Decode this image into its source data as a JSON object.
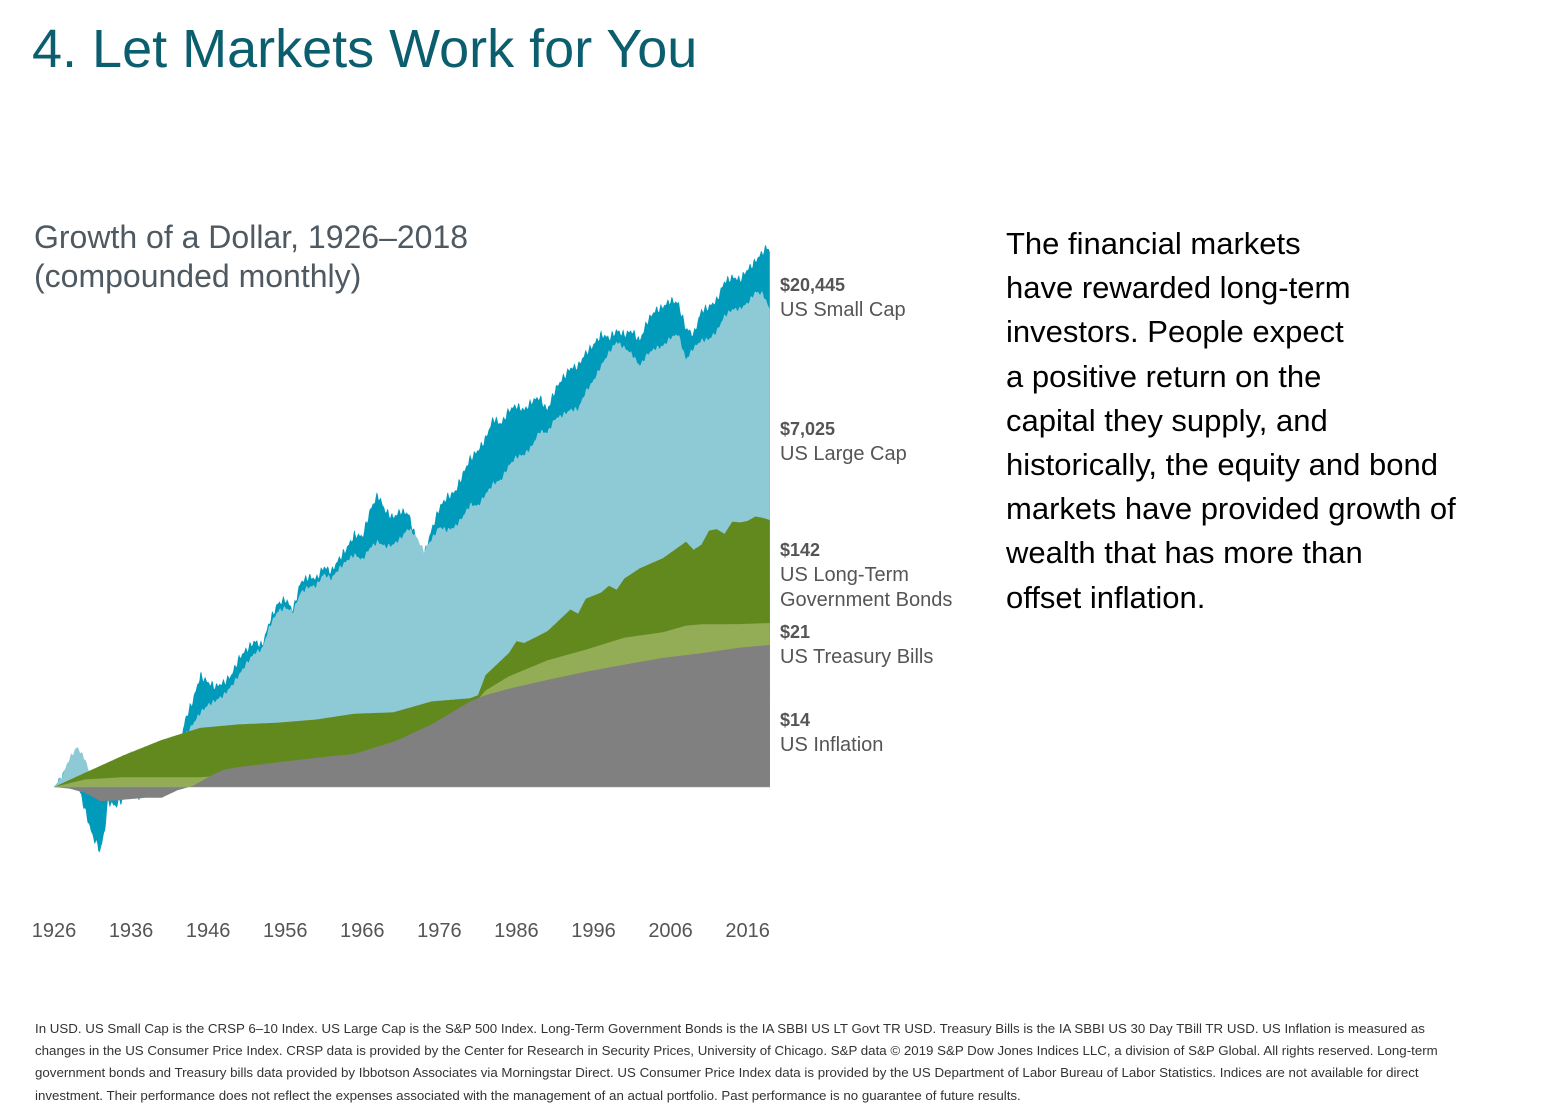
{
  "slide": {
    "title": "4. Let Markets Work for You"
  },
  "chart_data": {
    "type": "area",
    "title_line1": "Growth of a Dollar, 1926–2018",
    "title_line2": "(compounded monthly)",
    "xlabel": "",
    "ylabel": "",
    "y_scale": "log",
    "grid": false,
    "x_ticks": [
      "1926",
      "1936",
      "1946",
      "1956",
      "1966",
      "1976",
      "1986",
      "1996",
      "2006",
      "2016"
    ],
    "x_range": [
      1926,
      2018.9
    ],
    "y_range": [
      0.35,
      60000
    ],
    "series": [
      {
        "name": "US Small Cap",
        "end_value": "$20,445",
        "color": "#009bbb",
        "points": [
          [
            1926,
            1
          ],
          [
            1927,
            1.2
          ],
          [
            1928,
            1.5
          ],
          [
            1929,
            1.1
          ],
          [
            1930,
            0.65
          ],
          [
            1931,
            0.4
          ],
          [
            1932,
            0.3
          ],
          [
            1932.6,
            0.45
          ],
          [
            1933,
            0.75
          ],
          [
            1934,
            0.7
          ],
          [
            1935,
            0.8
          ],
          [
            1936,
            1.0
          ],
          [
            1937,
            0.8
          ],
          [
            1938,
            0.95
          ],
          [
            1939,
            1.05
          ],
          [
            1940,
            1.1
          ],
          [
            1941,
            1.3
          ],
          [
            1942,
            1.6
          ],
          [
            1943,
            3.5
          ],
          [
            1944,
            5
          ],
          [
            1945,
            8
          ],
          [
            1946,
            7
          ],
          [
            1947,
            6.5
          ],
          [
            1948,
            7
          ],
          [
            1949,
            8
          ],
          [
            1950,
            11
          ],
          [
            1951,
            13
          ],
          [
            1952,
            15
          ],
          [
            1953,
            14
          ],
          [
            1954,
            22
          ],
          [
            1955,
            30
          ],
          [
            1956,
            33
          ],
          [
            1957,
            27
          ],
          [
            1958,
            45
          ],
          [
            1959,
            50
          ],
          [
            1960,
            48
          ],
          [
            1961,
            60
          ],
          [
            1962,
            55
          ],
          [
            1963,
            70
          ],
          [
            1964,
            85
          ],
          [
            1965,
            110
          ],
          [
            1966,
            105
          ],
          [
            1967,
            170
          ],
          [
            1968,
            230
          ],
          [
            1969,
            170
          ],
          [
            1970,
            150
          ],
          [
            1971,
            170
          ],
          [
            1972,
            160
          ],
          [
            1973,
            100
          ],
          [
            1974,
            75
          ],
          [
            1975,
            120
          ],
          [
            1976,
            180
          ],
          [
            1977,
            220
          ],
          [
            1978,
            240
          ],
          [
            1979,
            330
          ],
          [
            1980,
            450
          ],
          [
            1981,
            520
          ],
          [
            1982,
            650
          ],
          [
            1983,
            950
          ],
          [
            1984,
            850
          ],
          [
            1985,
            1100
          ],
          [
            1986,
            1200
          ],
          [
            1987,
            1100
          ],
          [
            1988,
            1300
          ],
          [
            1989,
            1400
          ],
          [
            1990,
            1100
          ],
          [
            1991,
            1600
          ],
          [
            1992,
            2000
          ],
          [
            1993,
            2400
          ],
          [
            1994,
            2500
          ],
          [
            1995,
            3200
          ],
          [
            1996,
            3700
          ],
          [
            1997,
            4500
          ],
          [
            1998,
            4200
          ],
          [
            1999,
            4800
          ],
          [
            2000,
            4500
          ],
          [
            2001,
            4800
          ],
          [
            2002,
            4000
          ],
          [
            2003,
            5800
          ],
          [
            2004,
            7000
          ],
          [
            2005,
            7500
          ],
          [
            2006,
            8500
          ],
          [
            2007,
            8000
          ],
          [
            2008,
            5000
          ],
          [
            2009,
            4500
          ],
          [
            2010,
            7000
          ],
          [
            2011,
            7500
          ],
          [
            2012,
            8500
          ],
          [
            2013,
            12000
          ],
          [
            2014,
            13000
          ],
          [
            2015,
            12500
          ],
          [
            2016,
            15000
          ],
          [
            2017,
            17500
          ],
          [
            2018,
            21000
          ],
          [
            2018.6,
            23000
          ],
          [
            2018.9,
            20445
          ]
        ]
      },
      {
        "name": "US Large Cap",
        "end_value": "$7,025",
        "color": "#8ec9d6",
        "points": [
          [
            1926,
            1
          ],
          [
            1927,
            1.2
          ],
          [
            1928,
            1.7
          ],
          [
            1929,
            2.1
          ],
          [
            1930,
            1.7
          ],
          [
            1931,
            1.1
          ],
          [
            1932,
            0.8
          ],
          [
            1933,
            0.85
          ],
          [
            1934,
            0.9
          ],
          [
            1935,
            1.2
          ],
          [
            1936,
            1.9
          ],
          [
            1937,
            1.4
          ],
          [
            1938,
            1.5
          ],
          [
            1939,
            1.6
          ],
          [
            1940,
            1.7
          ],
          [
            1941,
            1.75
          ],
          [
            1942,
            1.8
          ],
          [
            1943,
            2.6
          ],
          [
            1944,
            3.2
          ],
          [
            1945,
            4
          ],
          [
            1946,
            4.6
          ],
          [
            1947,
            5
          ],
          [
            1948,
            5.5
          ],
          [
            1949,
            6.5
          ],
          [
            1950,
            8
          ],
          [
            1951,
            10
          ],
          [
            1952,
            12
          ],
          [
            1953,
            13
          ],
          [
            1954,
            20
          ],
          [
            1955,
            26
          ],
          [
            1956,
            28
          ],
          [
            1957,
            26
          ],
          [
            1958,
            37
          ],
          [
            1959,
            41
          ],
          [
            1960,
            42
          ],
          [
            1961,
            52
          ],
          [
            1962,
            48
          ],
          [
            1963,
            58
          ],
          [
            1964,
            67
          ],
          [
            1965,
            75
          ],
          [
            1966,
            68
          ],
          [
            1967,
            85
          ],
          [
            1968,
            95
          ],
          [
            1969,
            87
          ],
          [
            1970,
            90
          ],
          [
            1971,
            102
          ],
          [
            1972,
            122
          ],
          [
            1973,
            105
          ],
          [
            1974,
            80
          ],
          [
            1975,
            100
          ],
          [
            1976,
            125
          ],
          [
            1977,
            118
          ],
          [
            1978,
            125
          ],
          [
            1979,
            150
          ],
          [
            1980,
            190
          ],
          [
            1981,
            185
          ],
          [
            1982,
            230
          ],
          [
            1983,
            280
          ],
          [
            1984,
            300
          ],
          [
            1985,
            390
          ],
          [
            1986,
            460
          ],
          [
            1987,
            480
          ],
          [
            1988,
            560
          ],
          [
            1989,
            740
          ],
          [
            1990,
            720
          ],
          [
            1991,
            930
          ],
          [
            1992,
            1000
          ],
          [
            1993,
            1100
          ],
          [
            1994,
            1120
          ],
          [
            1995,
            1550
          ],
          [
            1996,
            1900
          ],
          [
            1997,
            2500
          ],
          [
            1998,
            3200
          ],
          [
            1999,
            3900
          ],
          [
            2000,
            3500
          ],
          [
            2001,
            3100
          ],
          [
            2002,
            2500
          ],
          [
            2003,
            3100
          ],
          [
            2004,
            3450
          ],
          [
            2005,
            3600
          ],
          [
            2006,
            4200
          ],
          [
            2007,
            4500
          ],
          [
            2008,
            2800
          ],
          [
            2009,
            3500
          ],
          [
            2010,
            4000
          ],
          [
            2011,
            4100
          ],
          [
            2012,
            4750
          ],
          [
            2013,
            6300
          ],
          [
            2014,
            7100
          ],
          [
            2015,
            7200
          ],
          [
            2016,
            8000
          ],
          [
            2017,
            9800
          ],
          [
            2018,
            9500
          ],
          [
            2018.9,
            7025
          ]
        ]
      },
      {
        "name": "US Long-Term Government Bonds",
        "end_value": "$142",
        "color": "#62891e",
        "points": [
          [
            1926,
            1
          ],
          [
            1930,
            1.3
          ],
          [
            1935,
            1.8
          ],
          [
            1940,
            2.4
          ],
          [
            1945,
            3.0
          ],
          [
            1950,
            3.2
          ],
          [
            1955,
            3.3
          ],
          [
            1960,
            3.5
          ],
          [
            1965,
            3.9
          ],
          [
            1970,
            4
          ],
          [
            1975,
            4.9
          ],
          [
            1980,
            5.2
          ],
          [
            1981,
            5.5
          ],
          [
            1982,
            8
          ],
          [
            1985,
            12
          ],
          [
            1986,
            15
          ],
          [
            1987,
            14.5
          ],
          [
            1990,
            18
          ],
          [
            1993,
            27
          ],
          [
            1994,
            25
          ],
          [
            1995,
            33
          ],
          [
            1997,
            37
          ],
          [
            1998,
            42
          ],
          [
            1999,
            39
          ],
          [
            2000,
            48
          ],
          [
            2002,
            58
          ],
          [
            2005,
            70
          ],
          [
            2008,
            95
          ],
          [
            2009,
            82
          ],
          [
            2010,
            90
          ],
          [
            2011,
            117
          ],
          [
            2012,
            120
          ],
          [
            2013,
            110
          ],
          [
            2014,
            138
          ],
          [
            2015,
            136
          ],
          [
            2016,
            140
          ],
          [
            2017,
            152
          ],
          [
            2018,
            148
          ],
          [
            2018.9,
            142
          ]
        ]
      },
      {
        "name": "US Treasury Bills",
        "end_value": "$21",
        "color": "#93ad57",
        "points": [
          [
            1926,
            1
          ],
          [
            1930,
            1.15
          ],
          [
            1935,
            1.2
          ],
          [
            1940,
            1.2
          ],
          [
            1945,
            1.2
          ],
          [
            1950,
            1.25
          ],
          [
            1955,
            1.35
          ],
          [
            1960,
            1.55
          ],
          [
            1965,
            1.85
          ],
          [
            1970,
            2.3
          ],
          [
            1975,
            3
          ],
          [
            1980,
            4.3
          ],
          [
            1982,
            6
          ],
          [
            1985,
            7.8
          ],
          [
            1990,
            10.5
          ],
          [
            1995,
            12.8
          ],
          [
            2000,
            16
          ],
          [
            2005,
            17.7
          ],
          [
            2008,
            20
          ],
          [
            2010,
            20.5
          ],
          [
            2015,
            20.6
          ],
          [
            2018.9,
            21
          ]
        ]
      },
      {
        "name": "US Inflation",
        "end_value": "$14",
        "color": "#808080",
        "points": [
          [
            1926,
            1
          ],
          [
            1928,
            0.97
          ],
          [
            1930,
            0.9
          ],
          [
            1932,
            0.77
          ],
          [
            1934,
            0.78
          ],
          [
            1936,
            0.8
          ],
          [
            1938,
            0.82
          ],
          [
            1940,
            0.82
          ],
          [
            1942,
            0.94
          ],
          [
            1944,
            1.02
          ],
          [
            1946,
            1.2
          ],
          [
            1948,
            1.38
          ],
          [
            1950,
            1.45
          ],
          [
            1955,
            1.58
          ],
          [
            1960,
            1.72
          ],
          [
            1965,
            1.85
          ],
          [
            1970,
            2.3
          ],
          [
            1975,
            3.2
          ],
          [
            1980,
            4.9
          ],
          [
            1982,
            5.5
          ],
          [
            1985,
            6.2
          ],
          [
            1990,
            7.3
          ],
          [
            1995,
            8.5
          ],
          [
            2000,
            9.7
          ],
          [
            2005,
            11
          ],
          [
            2010,
            12
          ],
          [
            2015,
            13.3
          ],
          [
            2018.9,
            14
          ]
        ]
      }
    ]
  },
  "body_text_lines": [
    "The financial markets",
    "have rewarded long-term",
    "investors. People expect",
    "a positive return on the",
    "capital they supply, and",
    "historically, the equity and bond",
    "markets have provided growth of",
    "wealth that has more than",
    "offset inflation."
  ],
  "footnote_lines": [
    "In USD. US Small Cap is the CRSP 6–10 Index. US Large Cap is the S&P 500 Index. Long-Term Government Bonds is the IA SBBI US LT Govt TR USD. Treasury Bills is the IA SBBI US 30 Day TBill TR USD. US Inflation is measured as",
    "changes in the US Consumer Price Index. CRSP data is provided by the Center for Research in Security Prices, University of Chicago. S&P data © 2019 S&P Dow Jones Indices LLC, a division of S&P Global. All rights reserved. Long-term",
    "government bonds and Treasury bills data provided by Ibbotson Associates via Morningstar Direct. US Consumer Price Index data is provided by the US Department of Labor Bureau of Labor Statistics. Indices are not available for direct",
    "investment. Their performance does not reflect the expenses associated with the management of an actual portfolio. Past performance is no guarantee of future results."
  ]
}
